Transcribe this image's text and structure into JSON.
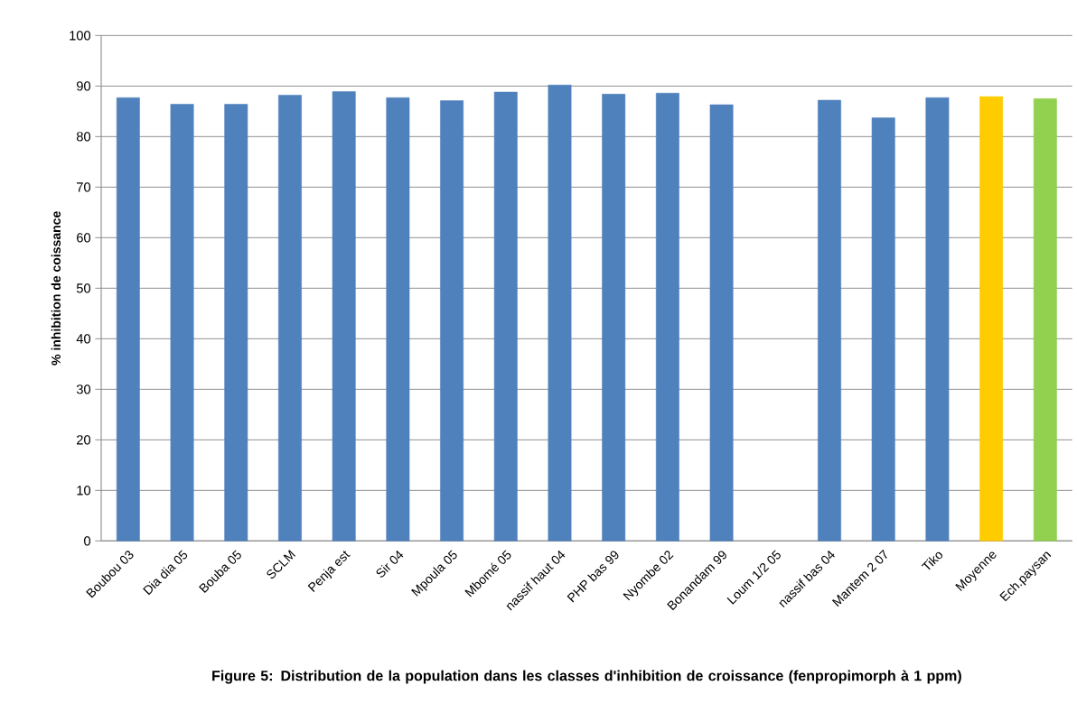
{
  "chart_data": {
    "type": "bar",
    "title": "Figure 5: Distribution de la population dans les classes d'inhibition de croissance (fenpropimorph à 1 ppm)",
    "ylabel": "% inhibition de coissance",
    "categories": [
      "Boubou 03",
      "Dia dia 05",
      "Bouba 05",
      "SCLM",
      "Penja est",
      "Sir 04",
      "Mpoula 05",
      "Mbomé 05",
      "nassif haut 04",
      "PHP bas 99",
      "Nyombe 02",
      "Bonandam 99",
      "Loum 1/2 05",
      "nassif bas 04",
      "Mantem 2 07",
      "Tiko",
      "Moyenne",
      "Ech.paysan"
    ],
    "values": [
      87.7,
      86.4,
      86.4,
      88.2,
      88.9,
      87.7,
      87.1,
      88.8,
      90.2,
      88.4,
      88.6,
      86.3,
      null,
      87.2,
      83.7,
      87.7,
      87.9,
      87.5
    ],
    "colors": [
      "#4f81bd",
      "#4f81bd",
      "#4f81bd",
      "#4f81bd",
      "#4f81bd",
      "#4f81bd",
      "#4f81bd",
      "#4f81bd",
      "#4f81bd",
      "#4f81bd",
      "#4f81bd",
      "#4f81bd",
      "#4f81bd",
      "#4f81bd",
      "#4f81bd",
      "#4f81bd",
      "#ffcc00",
      "#92d050"
    ],
    "ylim": [
      0,
      100
    ],
    "yticks": [
      0,
      10,
      20,
      30,
      40,
      50,
      60,
      70,
      80,
      90,
      100
    ],
    "grid": "y"
  }
}
